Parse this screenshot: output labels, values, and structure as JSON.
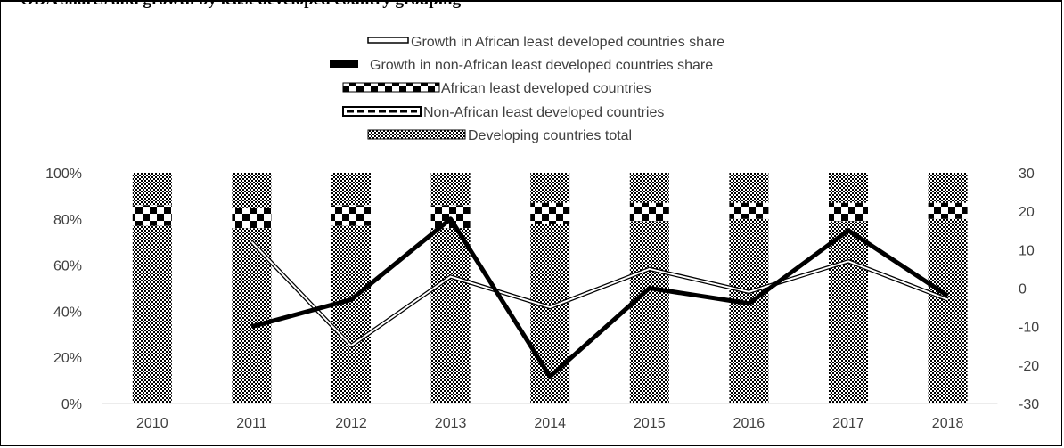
{
  "chart_data": {
    "type": "bar",
    "title": "ODA shares and growth by least developed country grouping",
    "categories": [
      "2010",
      "2011",
      "2012",
      "2013",
      "2014",
      "2015",
      "2016",
      "2017",
      "2018"
    ],
    "stacked_series": [
      {
        "name": "Developing countries total",
        "pattern": "fine-checker",
        "values": [
          77,
          76,
          77,
          76,
          78,
          79,
          80,
          79,
          80
        ]
      },
      {
        "name": "African least developed countries",
        "pattern": "coarse-checker",
        "values": [
          9,
          9,
          9,
          10,
          9,
          8,
          7,
          8,
          7
        ]
      },
      {
        "name": "Non-African least developed countries",
        "pattern": "fine-checker",
        "values": [
          14,
          15,
          14,
          14,
          13,
          13,
          13,
          13,
          13
        ]
      }
    ],
    "line_series": [
      {
        "name": "Growth in African least developed countries share",
        "style": "double-line",
        "axis": "right",
        "values": [
          null,
          12,
          -15,
          3,
          -5,
          5,
          -1,
          7,
          -3
        ]
      },
      {
        "name": "Growth in non-African least developed countries share",
        "style": "thick-black",
        "axis": "right",
        "values": [
          null,
          -10,
          -3,
          18,
          -23,
          0,
          -4,
          15,
          -2
        ]
      }
    ],
    "y_left": {
      "min": 0,
      "max": 100,
      "ticks": [
        "0%",
        "20%",
        "40%",
        "60%",
        "80%",
        "100%"
      ]
    },
    "y_right": {
      "min": -30,
      "max": 30,
      "ticks": [
        "-30",
        "-20",
        "-10",
        "0",
        "10",
        "20",
        "30"
      ]
    },
    "legend_position": "top-center",
    "grid": false
  }
}
